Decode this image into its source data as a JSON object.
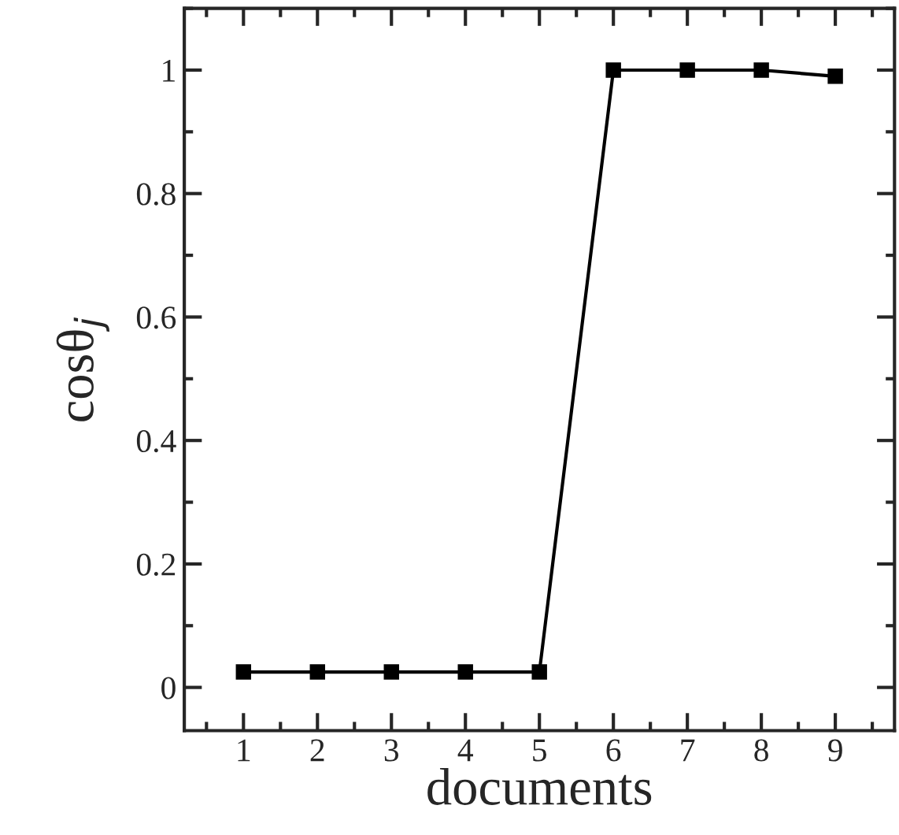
{
  "chart_data": {
    "type": "line",
    "xlabel": "documents",
    "ylabel": "cosθ$_{j}$",
    "x": [
      1,
      2,
      3,
      4,
      5,
      6,
      7,
      8,
      9
    ],
    "series": [
      {
        "color": "#000000",
        "values": [
          0.025,
          0.025,
          0.025,
          0.025,
          0.025,
          1.0,
          1.0,
          1.0,
          0.99
        ]
      }
    ],
    "xlim": [
      0.2,
      9.8
    ],
    "xticks": [
      1,
      2,
      3,
      4,
      5,
      6,
      7,
      8,
      9
    ],
    "ylim": [
      -0.07,
      1.1
    ],
    "yticks": [
      0,
      0.2,
      0.4,
      0.6,
      0.8,
      1
    ],
    "marker": "square",
    "line_style": "solid",
    "grid": false
  }
}
